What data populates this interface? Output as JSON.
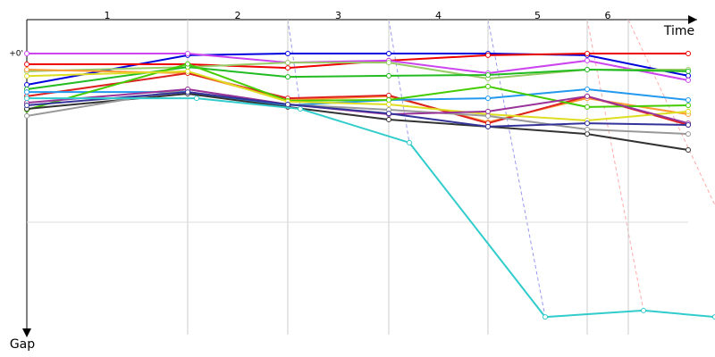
{
  "chart_data": {
    "type": "line",
    "x_label": "Time",
    "y_label": "Gap",
    "xlim": [
      0,
      75
    ],
    "ylim": [
      0,
      100
    ],
    "yticks": [
      {
        "value": 0,
        "label": "+0'"
      }
    ],
    "ygrid": [
      60
    ],
    "lap_ends": [
      18,
      29.2,
      40.5,
      51.6,
      62.7,
      67.3
    ],
    "lap_labels": [
      "1",
      "2",
      "3",
      "4",
      "5",
      "6"
    ],
    "x": [
      0,
      18,
      29.2,
      40.5,
      51.6,
      62.7,
      74
    ],
    "series": [
      {
        "color": "#0000dd",
        "values": [
          11.1,
          0.6,
          0,
          0,
          0,
          0.6,
          7.9
        ]
      },
      {
        "color": "#ee0000",
        "values": [
          3.8,
          3.8,
          5.1,
          2.5,
          0.6,
          0,
          0
        ]
      },
      {
        "color": "#cc44ee",
        "values": [
          0,
          0,
          3.2,
          2.5,
          7,
          2.5,
          9.5
        ]
      },
      {
        "color": "#99cc66",
        "values": [
          6.3,
          4.8,
          3.2,
          3.2,
          8.9,
          5.7,
          5.7
        ]
      },
      {
        "color": "#22bb22",
        "values": [
          12.7,
          4.8,
          8.3,
          7.9,
          7.6,
          5.7,
          6.3
        ]
      },
      {
        "color": "#ff9933",
        "values": [
          5.7,
          7,
          16.5,
          15.2,
          24.4,
          15.9,
          21.6
        ]
      },
      {
        "color": "#dd2222",
        "values": [
          15.2,
          7,
          15.9,
          14.9,
          24.8,
          15.2,
          25.4
        ]
      },
      {
        "color": "#2299ee",
        "values": [
          13.7,
          13.7,
          18.4,
          16.5,
          15.9,
          12.7,
          16.5
        ]
      },
      {
        "color": "#44cc00",
        "values": [
          20,
          3.7,
          16.8,
          16.5,
          11.7,
          19,
          18.4
        ]
      },
      {
        "color": "#dddd22",
        "values": [
          8,
          6.3,
          17.1,
          18.1,
          21.6,
          23.8,
          20.6
        ]
      },
      {
        "color": "#333333",
        "values": [
          19.7,
          14.3,
          19,
          23.5,
          26,
          28.6,
          34.3
        ]
      },
      {
        "color": "#999999",
        "values": [
          22.2,
          12.7,
          18.1,
          20,
          22.2,
          27,
          28.6
        ]
      },
      {
        "color": "#993399",
        "values": [
          17.5,
          12.7,
          18.1,
          21.6,
          20.6,
          15.2,
          24.8
        ]
      },
      {
        "color": "#333399",
        "values": [
          18.4,
          13.7,
          18.1,
          21.3,
          26,
          24.8,
          25.4
        ]
      },
      {
        "color": "#33cccc",
        "x": [
          0,
          19,
          30.6,
          42.8,
          58,
          69,
          77
        ],
        "values": [
          15.9,
          15.9,
          19.7,
          31.7,
          93.7,
          91.4,
          93.7
        ]
      }
    ]
  }
}
